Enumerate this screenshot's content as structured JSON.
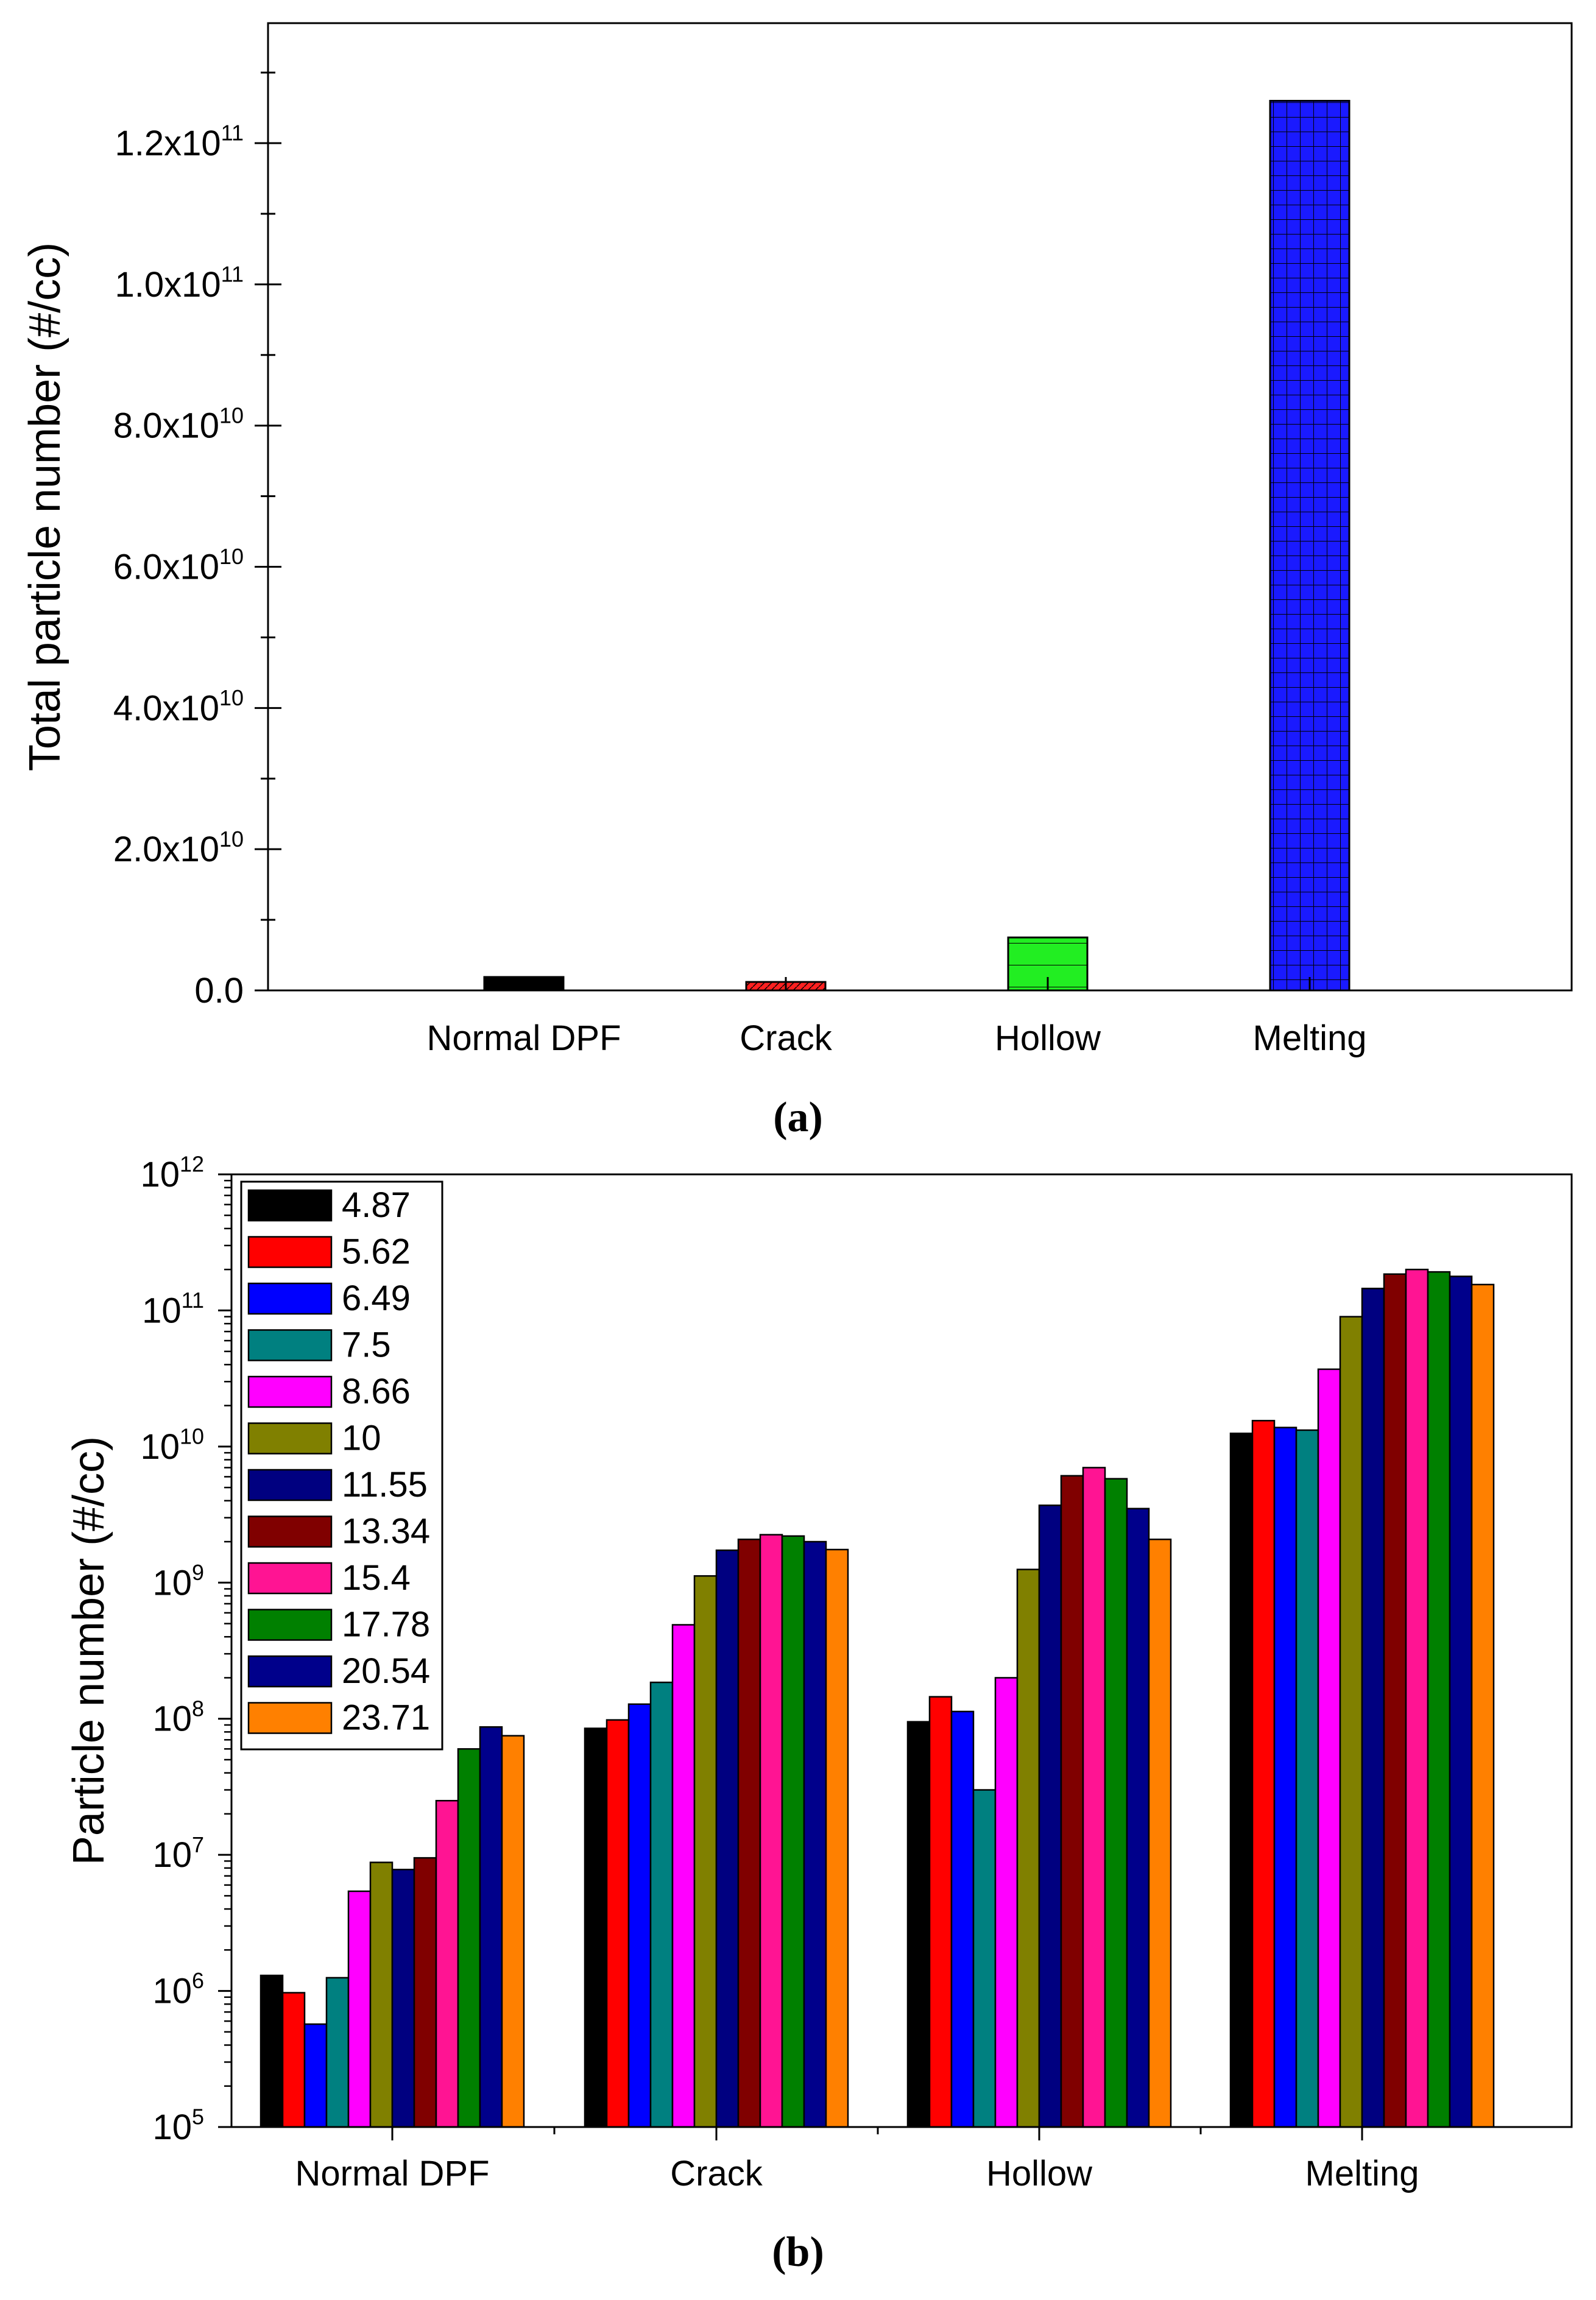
{
  "chart_data": [
    {
      "panel": "a",
      "type": "bar",
      "categories": [
        "Normal DPF",
        "Crack",
        "Hollow",
        "Melting"
      ],
      "values": [
        1900000000,
        1200000000,
        7500000000,
        126000000000
      ],
      "colors": [
        "#000000",
        "#ff2020",
        "#22ee22",
        "#1a1aff"
      ],
      "ylabel": "Total particle number (#/cc)",
      "xlabel": "",
      "ylim": [
        0,
        137000000000
      ],
      "yticks": [
        {
          "value": 0,
          "mant": "0.0",
          "exp": ""
        },
        {
          "value": 20000000000,
          "mant": "2.0x10",
          "exp": "10"
        },
        {
          "value": 40000000000,
          "mant": "4.0x10",
          "exp": "10"
        },
        {
          "value": 60000000000,
          "mant": "6.0x10",
          "exp": "10"
        },
        {
          "value": 80000000000,
          "mant": "8.0x10",
          "exp": "10"
        },
        {
          "value": 100000000000,
          "mant": "1.0x10",
          "exp": "11"
        },
        {
          "value": 120000000000,
          "mant": "1.2x10",
          "exp": "11"
        }
      ],
      "caption": "(a)"
    },
    {
      "panel": "b",
      "type": "bar",
      "yscale": "log",
      "categories": [
        "Normal DPF",
        "Crack",
        "Hollow",
        "Melting"
      ],
      "ylabel": "Particle number (#/cc)",
      "xlabel": "",
      "ylim": [
        100000,
        1000000000000
      ],
      "yticks": [
        {
          "value": 100000,
          "base": "10",
          "exp": "5"
        },
        {
          "value": 1000000,
          "base": "10",
          "exp": "6"
        },
        {
          "value": 10000000,
          "base": "10",
          "exp": "7"
        },
        {
          "value": 100000000,
          "base": "10",
          "exp": "8"
        },
        {
          "value": 1000000000,
          "base": "10",
          "exp": "9"
        },
        {
          "value": 10000000000,
          "base": "10",
          "exp": "10"
        },
        {
          "value": 100000000000,
          "base": "10",
          "exp": "11"
        },
        {
          "value": 1000000000000,
          "base": "10",
          "exp": "12"
        }
      ],
      "legend_position": "top-left",
      "series": [
        {
          "name": "4.87",
          "color": "#000000",
          "values": [
            1300000,
            85000000,
            95000000,
            12500000000
          ]
        },
        {
          "name": "5.62",
          "color": "#ff0000",
          "values": [
            970000,
            98000000,
            145000000,
            15500000000
          ]
        },
        {
          "name": "6.49",
          "color": "#0000ff",
          "values": [
            570000,
            128000000,
            113000000,
            13800000000
          ]
        },
        {
          "name": "7.5",
          "color": "#008080",
          "values": [
            1250000,
            185000000,
            30000000,
            13200000000
          ]
        },
        {
          "name": "8.66",
          "color": "#ff00ff",
          "values": [
            5400000,
            490000000,
            200000000,
            37000000000
          ]
        },
        {
          "name": "10",
          "color": "#808000",
          "values": [
            8800000,
            1120000000,
            1250000000,
            90000000000
          ]
        },
        {
          "name": "11.55",
          "color": "#000080",
          "values": [
            7800000,
            1730000000,
            3700000000,
            145000000000
          ]
        },
        {
          "name": "13.34",
          "color": "#800000",
          "values": [
            9500000,
            2080000000,
            6100000000,
            185000000000
          ]
        },
        {
          "name": "15.4",
          "color": "#ff1493",
          "values": [
            25000000,
            2250000000,
            7000000000,
            200000000000
          ]
        },
        {
          "name": "17.78",
          "color": "#008000",
          "values": [
            60000000,
            2200000000,
            5800000000,
            192000000000
          ]
        },
        {
          "name": "20.54",
          "color": "#00008b",
          "values": [
            87000000,
            2000000000,
            3500000000,
            178000000000
          ]
        },
        {
          "name": "23.71",
          "color": "#ff8000",
          "values": [
            75000000,
            1750000000,
            2080000000,
            155000000000
          ]
        }
      ],
      "caption": "(b)"
    }
  ]
}
